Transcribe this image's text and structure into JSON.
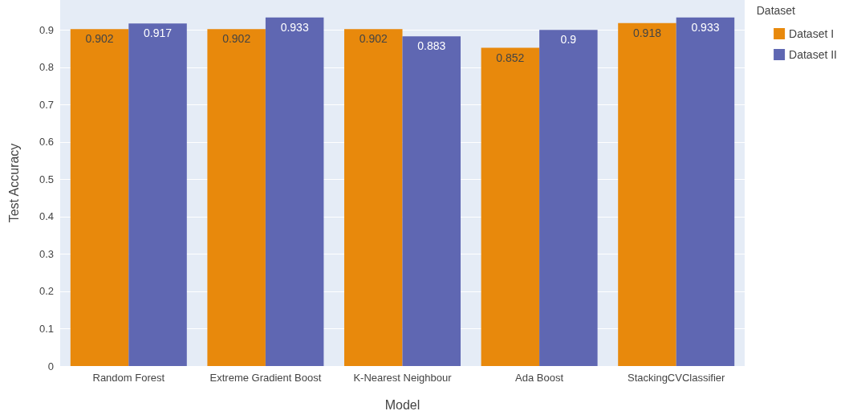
{
  "chart_data": {
    "type": "bar",
    "xlabel": "Model",
    "ylabel": "Test Accuracy",
    "legend_title": "Dataset",
    "categories": [
      "Random Forest",
      "Extreme Gradient Boost",
      "K-Nearest Neighbour",
      "Ada Boost",
      "StackingCVClassifier"
    ],
    "series": [
      {
        "name": "Dataset I",
        "color": "#e8890c",
        "values": [
          0.902,
          0.902,
          0.902,
          0.852,
          0.918
        ]
      },
      {
        "name": "Dataset II",
        "color": "#5f67b2",
        "values": [
          0.917,
          0.933,
          0.883,
          0.9,
          0.933
        ]
      }
    ],
    "ylim": [
      0,
      0.98
    ],
    "yticks": [
      0,
      0.1,
      0.2,
      0.3,
      0.4,
      0.5,
      0.6,
      0.7,
      0.8,
      0.9
    ],
    "grid": "y",
    "legend": "top right",
    "data_labels": true
  }
}
